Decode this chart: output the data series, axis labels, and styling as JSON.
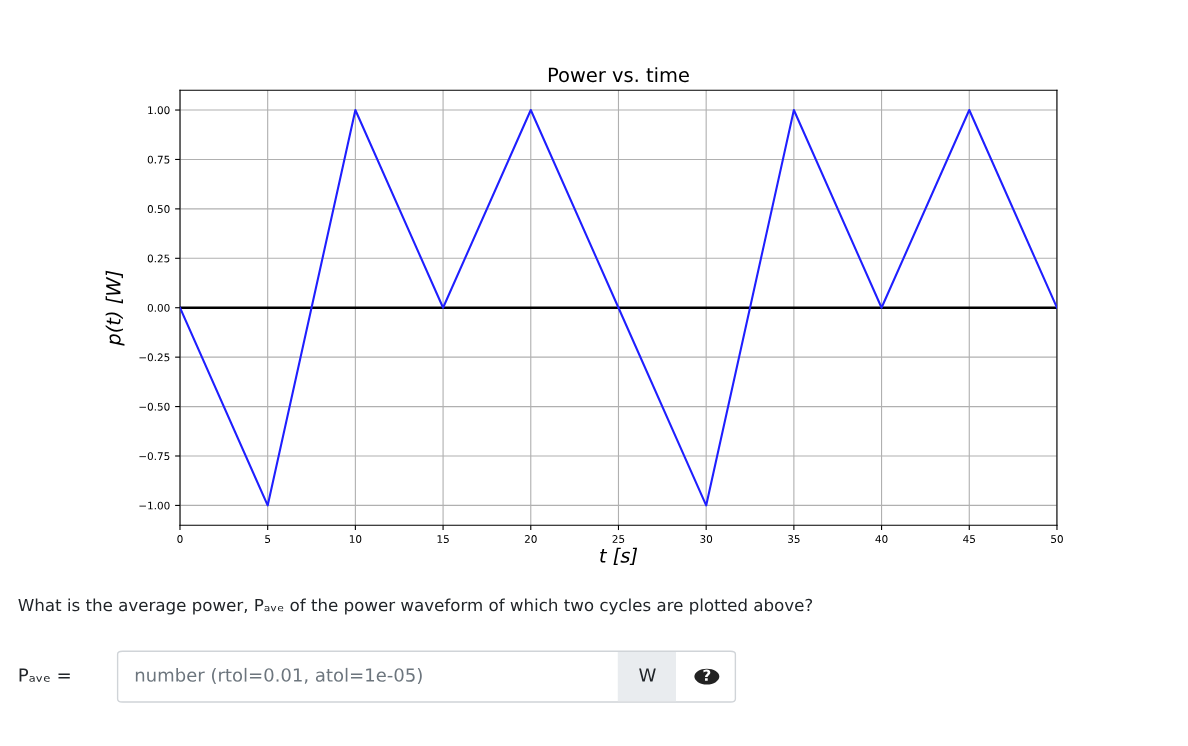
{
  "chart_data": {
    "type": "line",
    "title": "Power vs. time",
    "xlabel": "t [s]",
    "ylabel": "p(t) [W]",
    "x": [
      0,
      5,
      10,
      15,
      20,
      25,
      30,
      35,
      40,
      45,
      50
    ],
    "series": [
      {
        "color": "#1f1fff",
        "values": [
          0,
          -1,
          1,
          0,
          1,
          0,
          -1,
          1,
          0,
          1,
          0
        ]
      }
    ],
    "xlim": [
      0,
      50
    ],
    "xticks": [
      0,
      5,
      10,
      15,
      20,
      25,
      30,
      35,
      40,
      45,
      50
    ],
    "ylim": [
      -1.1,
      1.1
    ],
    "yticks": [
      {
        "value": -1,
        "label": "−1.00"
      },
      {
        "value": -0.75,
        "label": "−0.75"
      },
      {
        "value": -0.5,
        "label": "−0.50"
      },
      {
        "value": -0.25,
        "label": "−0.25"
      },
      {
        "value": 0,
        "label": "0.00"
      },
      {
        "value": 0.25,
        "label": "0.25"
      },
      {
        "value": 0.5,
        "label": "0.50"
      },
      {
        "value": 0.75,
        "label": "0.75"
      },
      {
        "value": 1,
        "label": "1.00"
      }
    ],
    "grid": true,
    "marker": "none",
    "line_style": "solid",
    "ref_lines": [
      {
        "axis": "y",
        "value": 0,
        "color": "#000000"
      }
    ],
    "annotations": [
      "What is the average power, Pₐᵥₑ of the power waveform of which two cycles are plotted above?",
      "Pₐᵥₑ =",
      "number (rtol=0.01, atol=1e-05)",
      "W",
      "?"
    ]
  }
}
